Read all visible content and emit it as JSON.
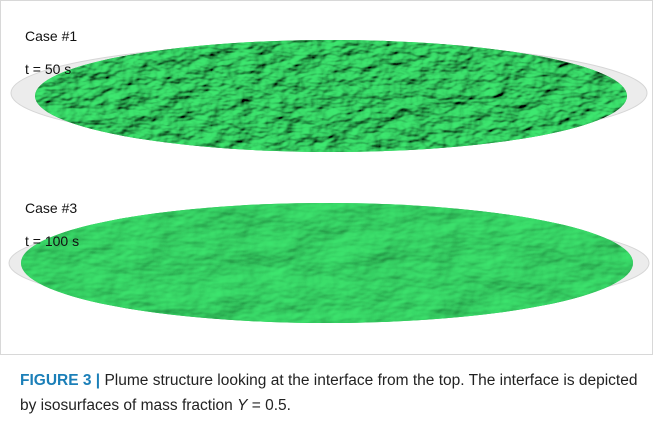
{
  "panels": [
    {
      "case": "Case #1",
      "time": "t = 50 s"
    },
    {
      "case": "Case #3",
      "time": "t = 100 s"
    }
  ],
  "caption": {
    "label": "FIGURE 3 |",
    "text": "Plume structure looking at the interface from the top. The interface is depicted by isosurfaces of mass fraction ",
    "symbol": "Y",
    "tail": " = 0.5."
  }
}
